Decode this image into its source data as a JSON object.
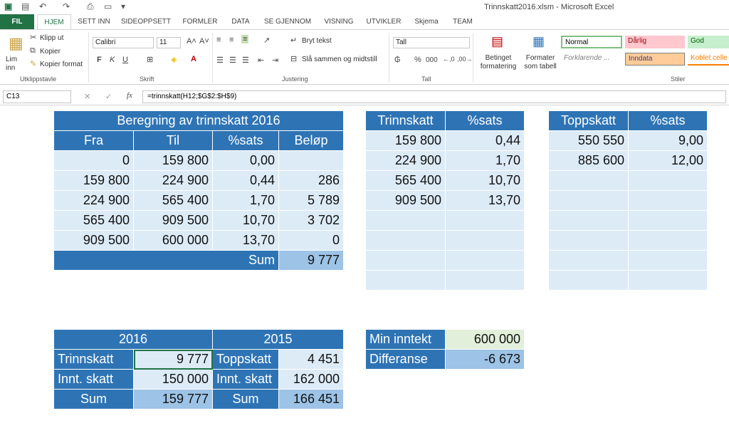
{
  "titlebar": {
    "title": "Trinnskatt2016.xlsm - Microsoft Excel"
  },
  "tabs": [
    "FIL",
    "HJEM",
    "SETT INN",
    "SIDEOPPSETT",
    "FORMLER",
    "DATA",
    "SE GJENNOM",
    "VISNING",
    "UTVIKLER",
    "Skjema",
    "TEAM"
  ],
  "ribbon": {
    "clipboard": {
      "paste": "Lim inn",
      "cut": "Klipp ut",
      "copy": "Kopier",
      "format_painter": "Kopier format",
      "label": "Utklippstavle"
    },
    "font": {
      "name": "Calibri",
      "size": "11",
      "bold": "F",
      "italic": "K",
      "underline": "U",
      "label": "Skrift"
    },
    "alignment": {
      "wrap": "Bryt tekst",
      "merge": "Slå sammen og midtstill",
      "label": "Justering"
    },
    "number": {
      "format": "Tall",
      "label": "Tall"
    },
    "styles": {
      "conditional": "Betinget formatering",
      "as_table": "Formater som tabell",
      "normal": "Normal",
      "bad": "Dårlig",
      "good": "God",
      "explanatory": "Forklarende ...",
      "input": "Inndata",
      "linked": "Koblet celle",
      "label": "Stiler"
    }
  },
  "formula_bar": {
    "cell": "C13",
    "fx": "fx",
    "formula": "=trinnskatt(H12;$G$2:$H$9)"
  },
  "table1": {
    "title": "Beregning av trinnskatt 2016",
    "headers": [
      "Fra",
      "Til",
      "%sats",
      "Beløp"
    ],
    "rows": [
      [
        "0",
        "159 800",
        "0,00",
        ""
      ],
      [
        "159 800",
        "224 900",
        "0,44",
        "286"
      ],
      [
        "224 900",
        "565 400",
        "1,70",
        "5 789"
      ],
      [
        "565 400",
        "909 500",
        "10,70",
        "3 702"
      ],
      [
        "909 500",
        "600 000",
        "13,70",
        "0"
      ]
    ],
    "sum_label": "Sum",
    "sum_value": "9 777"
  },
  "table2": {
    "headers": [
      "Trinnskatt",
      "%sats"
    ],
    "rows": [
      [
        "159 800",
        "0,44"
      ],
      [
        "224 900",
        "1,70"
      ],
      [
        "565 400",
        "10,70"
      ],
      [
        "909 500",
        "13,70"
      ]
    ]
  },
  "table3": {
    "headers": [
      "Toppskatt",
      "%sats"
    ],
    "rows": [
      [
        "550 550",
        "9,00"
      ],
      [
        "885 600",
        "12,00"
      ]
    ]
  },
  "table4": {
    "year_a": "2016",
    "year_b": "2015",
    "rows": [
      [
        "Trinnskatt",
        "9 777",
        "Toppskatt",
        "4 451"
      ],
      [
        "Innt. skatt",
        "150 000",
        "Innt. skatt",
        "162 000"
      ],
      [
        "Sum",
        "159 777",
        "Sum",
        "166 451"
      ]
    ]
  },
  "table5": {
    "rows": [
      [
        "Min inntekt",
        "600 000"
      ],
      [
        "Differanse",
        "-6 673"
      ]
    ]
  }
}
